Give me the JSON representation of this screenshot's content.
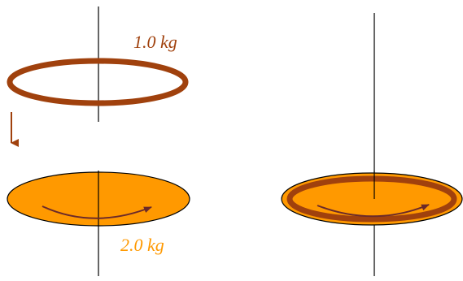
{
  "labels": {
    "ring_mass": "1.0 kg",
    "disk_mass": "2.0 kg"
  },
  "colors": {
    "ring": "#A0410D",
    "disk_fill": "#FF9900",
    "outline": "#000000",
    "axis": "#000000",
    "rotation_arrow": "#6B2A2A",
    "fall_arrow": "#A0410D",
    "ring_label": "#A0410D",
    "disk_label": "#FF9900"
  }
}
